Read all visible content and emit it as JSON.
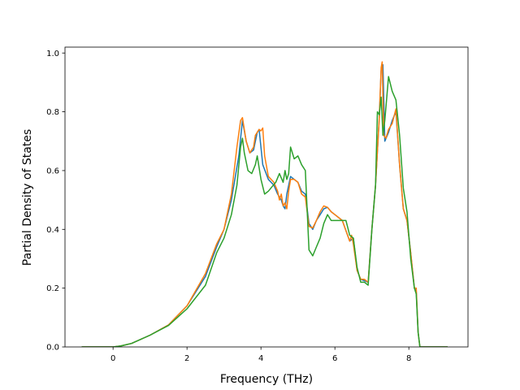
{
  "chart_data": {
    "type": "line",
    "title": "",
    "xlabel": "Frequency (THz)",
    "ylabel": "Partial Density of States",
    "xlim": [
      -1.3,
      9.6
    ],
    "ylim": [
      0.0,
      1.02
    ],
    "xticks": [
      0,
      2,
      4,
      6,
      8
    ],
    "xtick_labels": [
      "0",
      "2",
      "4",
      "6",
      "8"
    ],
    "yticks": [
      0.0,
      0.2,
      0.4,
      0.6,
      0.8,
      1.0
    ],
    "ytick_labels": [
      "0.0",
      "0.2",
      "0.4",
      "0.6",
      "0.8",
      "1.0"
    ],
    "grid": false,
    "legend": "none",
    "series": [
      {
        "color": "#1f77b4",
        "x": [
          -0.85,
          0.0,
          0.2,
          0.5,
          1.0,
          1.5,
          2.0,
          2.5,
          2.8,
          3.0,
          3.2,
          3.4,
          3.5,
          3.6,
          3.7,
          3.8,
          3.9,
          3.95,
          4.05,
          4.2,
          4.35,
          4.45,
          4.55,
          4.6,
          4.65,
          4.7,
          4.75,
          4.8,
          4.9,
          5.0,
          5.1,
          5.2,
          5.3,
          5.4,
          5.5,
          5.6,
          5.7,
          5.8,
          5.9,
          6.0,
          6.2,
          6.4,
          6.5,
          6.6,
          6.7,
          6.8,
          6.9,
          7.0,
          7.1,
          7.2,
          7.25,
          7.3,
          7.35,
          7.45,
          7.55,
          7.65,
          7.75,
          7.85,
          7.95,
          8.05,
          8.15,
          8.2,
          8.25,
          8.3,
          8.4,
          9.05
        ],
        "values": [
          0.0,
          0.0,
          0.003,
          0.012,
          0.04,
          0.075,
          0.14,
          0.24,
          0.34,
          0.4,
          0.5,
          0.65,
          0.77,
          0.7,
          0.66,
          0.67,
          0.73,
          0.74,
          0.62,
          0.57,
          0.55,
          0.52,
          0.5,
          0.48,
          0.47,
          0.52,
          0.55,
          0.58,
          0.57,
          0.56,
          0.53,
          0.52,
          0.42,
          0.4,
          0.43,
          0.45,
          0.47,
          0.475,
          0.46,
          0.45,
          0.43,
          0.36,
          0.37,
          0.26,
          0.23,
          0.225,
          0.22,
          0.4,
          0.55,
          0.78,
          0.94,
          0.96,
          0.7,
          0.73,
          0.77,
          0.8,
          0.62,
          0.47,
          0.43,
          0.32,
          0.2,
          0.19,
          0.05,
          0.0,
          0.0,
          0.0
        ]
      },
      {
        "color": "#ff7f0e",
        "x": [
          -0.85,
          0.0,
          0.2,
          0.5,
          1.0,
          1.5,
          2.0,
          2.5,
          2.8,
          3.0,
          3.2,
          3.35,
          3.45,
          3.5,
          3.6,
          3.7,
          3.8,
          3.85,
          3.95,
          4.0,
          4.05,
          4.1,
          4.2,
          4.35,
          4.45,
          4.5,
          4.55,
          4.6,
          4.65,
          4.7,
          4.75,
          4.8,
          4.9,
          5.0,
          5.1,
          5.2,
          5.3,
          5.4,
          5.5,
          5.6,
          5.7,
          5.8,
          5.9,
          6.0,
          6.2,
          6.4,
          6.45,
          6.5,
          6.6,
          6.7,
          6.8,
          6.9,
          7.0,
          7.1,
          7.2,
          7.25,
          7.28,
          7.32,
          7.38,
          7.45,
          7.55,
          7.65,
          7.75,
          7.85,
          7.95,
          8.05,
          8.15,
          8.2,
          8.25,
          8.3,
          8.4,
          9.05
        ],
        "values": [
          0.0,
          0.0,
          0.003,
          0.012,
          0.04,
          0.075,
          0.14,
          0.25,
          0.35,
          0.4,
          0.52,
          0.68,
          0.77,
          0.78,
          0.7,
          0.66,
          0.68,
          0.72,
          0.74,
          0.735,
          0.745,
          0.65,
          0.58,
          0.56,
          0.53,
          0.5,
          0.52,
          0.48,
          0.49,
          0.47,
          0.53,
          0.57,
          0.57,
          0.56,
          0.52,
          0.51,
          0.41,
          0.405,
          0.43,
          0.46,
          0.48,
          0.475,
          0.46,
          0.45,
          0.43,
          0.36,
          0.38,
          0.35,
          0.26,
          0.23,
          0.23,
          0.22,
          0.4,
          0.55,
          0.78,
          0.95,
          0.97,
          0.72,
          0.71,
          0.74,
          0.76,
          0.81,
          0.62,
          0.47,
          0.43,
          0.32,
          0.2,
          0.2,
          0.05,
          0.0,
          0.0,
          0.0
        ]
      },
      {
        "color": "#2ca02c",
        "x": [
          -0.85,
          0.0,
          0.2,
          0.5,
          1.0,
          1.5,
          2.0,
          2.5,
          2.8,
          3.0,
          3.2,
          3.35,
          3.45,
          3.5,
          3.55,
          3.65,
          3.75,
          3.85,
          3.9,
          4.0,
          4.1,
          4.2,
          4.3,
          4.4,
          4.5,
          4.6,
          4.65,
          4.7,
          4.75,
          4.8,
          4.9,
          5.0,
          5.1,
          5.2,
          5.3,
          5.4,
          5.5,
          5.6,
          5.7,
          5.8,
          5.9,
          6.0,
          6.2,
          6.3,
          6.4,
          6.5,
          6.6,
          6.7,
          6.8,
          6.9,
          7.0,
          7.1,
          7.15,
          7.2,
          7.25,
          7.3,
          7.35,
          7.45,
          7.55,
          7.65,
          7.75,
          7.85,
          7.95,
          8.05,
          8.15,
          8.2,
          8.25,
          8.3,
          8.4,
          9.05
        ],
        "values": [
          0.0,
          0.0,
          0.003,
          0.012,
          0.04,
          0.073,
          0.13,
          0.21,
          0.32,
          0.37,
          0.45,
          0.55,
          0.68,
          0.71,
          0.66,
          0.6,
          0.59,
          0.62,
          0.65,
          0.57,
          0.52,
          0.53,
          0.545,
          0.56,
          0.59,
          0.56,
          0.6,
          0.57,
          0.59,
          0.68,
          0.64,
          0.65,
          0.62,
          0.6,
          0.33,
          0.31,
          0.34,
          0.37,
          0.42,
          0.45,
          0.43,
          0.43,
          0.43,
          0.43,
          0.38,
          0.37,
          0.27,
          0.22,
          0.22,
          0.21,
          0.4,
          0.55,
          0.8,
          0.79,
          0.85,
          0.72,
          0.77,
          0.92,
          0.87,
          0.84,
          0.72,
          0.54,
          0.46,
          0.3,
          0.2,
          0.18,
          0.05,
          0.0,
          0.0,
          0.0
        ]
      }
    ]
  }
}
